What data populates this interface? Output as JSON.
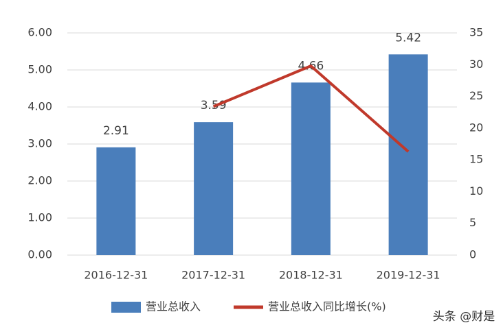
{
  "chart_data": {
    "type": "bar",
    "categories": [
      "2016-12-31",
      "2017-12-31",
      "2018-12-31",
      "2019-12-31"
    ],
    "series": [
      {
        "name": "营业总收入",
        "type": "bar",
        "color": "#4a7ebb",
        "values": [
          2.91,
          3.59,
          4.66,
          5.42
        ],
        "data_labels": true
      },
      {
        "name": "营业总收入同比增长(%)",
        "type": "line",
        "axis": "y2",
        "color": "#c0392b",
        "values": [
          null,
          23.4,
          29.8,
          16.3
        ]
      }
    ],
    "ylim": [
      0,
      6
    ],
    "yticks": [
      {
        "value": 0,
        "label": "0.00"
      },
      {
        "value": 1,
        "label": "1.00"
      },
      {
        "value": 2,
        "label": "2.00"
      },
      {
        "value": 3,
        "label": "3.00"
      },
      {
        "value": 4,
        "label": "4.00"
      },
      {
        "value": 5,
        "label": "5.00"
      },
      {
        "value": 6,
        "label": "6.00"
      }
    ],
    "y2lim": [
      0,
      35
    ],
    "y2ticks": [
      0,
      5,
      10,
      15,
      20,
      25,
      30,
      35
    ],
    "grid": true,
    "legend": "bottom",
    "watermark": "头条 @财是"
  }
}
